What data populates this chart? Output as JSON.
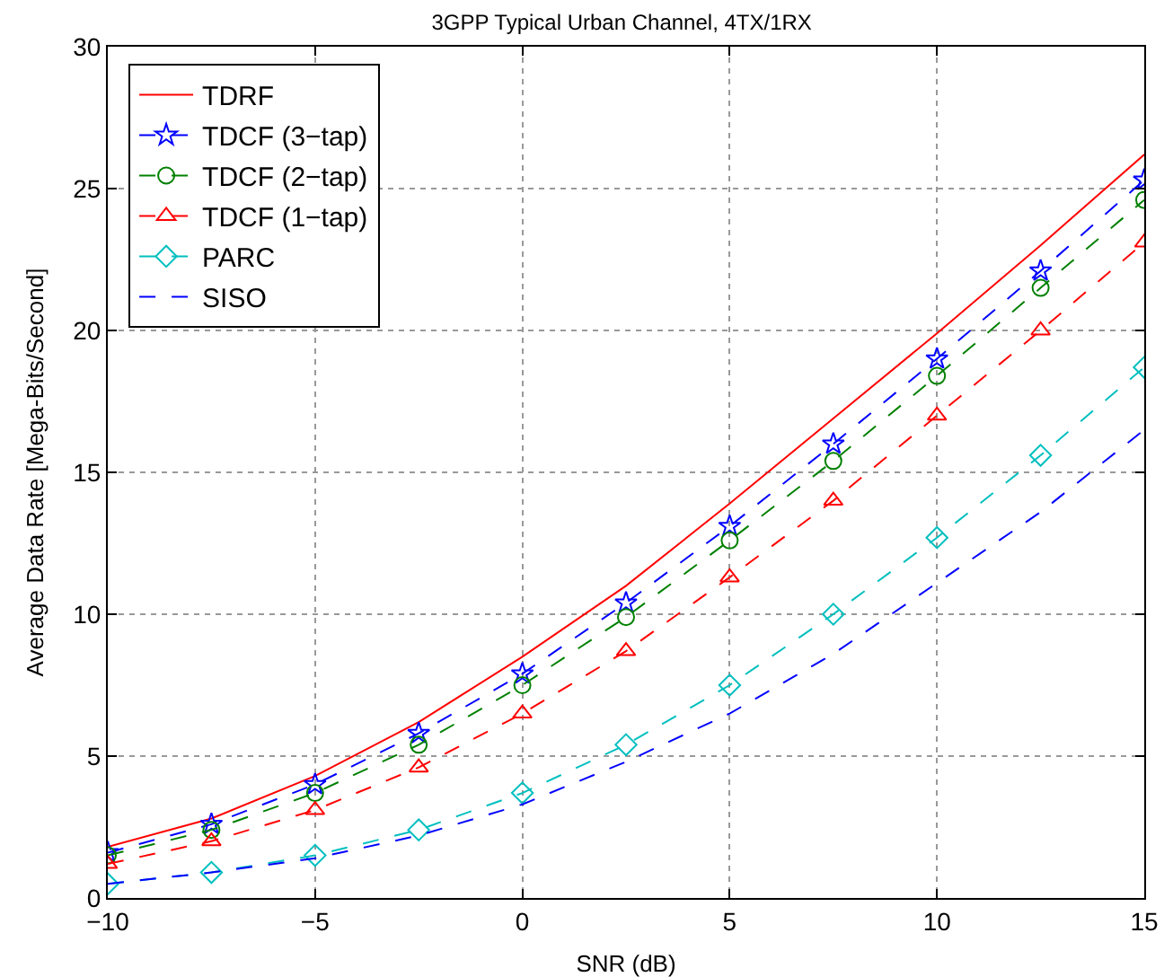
{
  "chart_data": {
    "type": "line",
    "title": "3GPP Typical Urban Channel, 4TX/1RX",
    "xlabel": "SNR (dB)",
    "ylabel": "Average Data Rate [Mega-Bits/Second]",
    "x": [
      -10,
      -7.5,
      -5,
      -2.5,
      0,
      2.5,
      5,
      7.5,
      10,
      12.5,
      15
    ],
    "series": [
      {
        "name": "TDRF",
        "color": "#ff0000",
        "marker": "none",
        "line_style": "solid",
        "values": [
          1.8,
          2.8,
          4.3,
          6.2,
          8.5,
          11.0,
          13.9,
          16.9,
          19.9,
          23.0,
          26.2
        ]
      },
      {
        "name": "TDCF (3−tap)",
        "color": "#0000ff",
        "marker": "star",
        "line_style": "dashed",
        "values": [
          1.6,
          2.6,
          4.0,
          5.8,
          7.9,
          10.4,
          13.1,
          16.0,
          19.0,
          22.1,
          25.3
        ]
      },
      {
        "name": "TDCF (2−tap)",
        "color": "#008000",
        "marker": "circle",
        "line_style": "dashed",
        "values": [
          1.5,
          2.4,
          3.7,
          5.4,
          7.5,
          9.9,
          12.6,
          15.4,
          18.4,
          21.5,
          24.6
        ]
      },
      {
        "name": "TDCF (1−tap)",
        "color": "#ff0000",
        "marker": "triangle",
        "line_style": "dashed",
        "values": [
          1.2,
          2.0,
          3.1,
          4.6,
          6.5,
          8.7,
          11.3,
          14.0,
          17.0,
          20.0,
          23.1
        ]
      },
      {
        "name": "PARC",
        "color": "#00bfbf",
        "marker": "diamond",
        "line_style": "dashed",
        "values": [
          0.5,
          0.9,
          1.5,
          2.4,
          3.7,
          5.4,
          7.5,
          10.0,
          12.7,
          15.6,
          18.7
        ]
      },
      {
        "name": "SISO",
        "color": "#0000ff",
        "marker": "none",
        "line_style": "dashed",
        "values": [
          0.5,
          0.9,
          1.4,
          2.2,
          3.3,
          4.8,
          6.5,
          8.6,
          11.1,
          13.6,
          16.5
        ]
      }
    ],
    "xlim": [
      -10,
      15
    ],
    "xticks": [
      -10,
      -5,
      0,
      5,
      10,
      15
    ],
    "ylim": [
      0,
      30
    ],
    "yticks": [
      0,
      5,
      10,
      15,
      20,
      25,
      30
    ],
    "grid": true,
    "legend": "top left"
  }
}
